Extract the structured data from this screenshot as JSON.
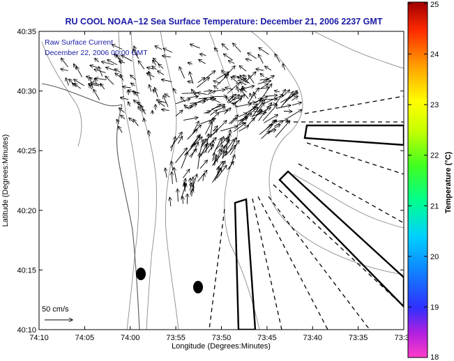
{
  "chart_data": {
    "type": "vector-field-map",
    "title": "RU COOL  NOAA−12  Sea Surface Temperature:  December 21, 2006 2237 GMT",
    "xlabel": "Longitude (Degrees:Minutes)",
    "ylabel": "Latitude (Degrees:Minutes)",
    "x_ticks": [
      "74:10",
      "74:05",
      "74:00",
      "73:55",
      "73:50",
      "73:45",
      "73:40",
      "73:35",
      "73:3"
    ],
    "y_ticks": [
      "40:10",
      "40:15",
      "40:20",
      "40:25",
      "40:30",
      "40:35"
    ],
    "xlim_minutes_west": [
      10,
      -32
    ],
    "ylim_minutes": [
      10,
      35
    ],
    "annotation_lines": [
      "Raw Surface Current",
      "December 22, 2006 00:00 GMT"
    ],
    "scale_label": "50 cm/s",
    "colorbar": {
      "label": "Temperature (°C)",
      "ticks": [
        "25",
        "24",
        "23",
        "22",
        "21",
        "20",
        "19",
        "18"
      ],
      "range": [
        18,
        25
      ]
    },
    "grid": false
  }
}
